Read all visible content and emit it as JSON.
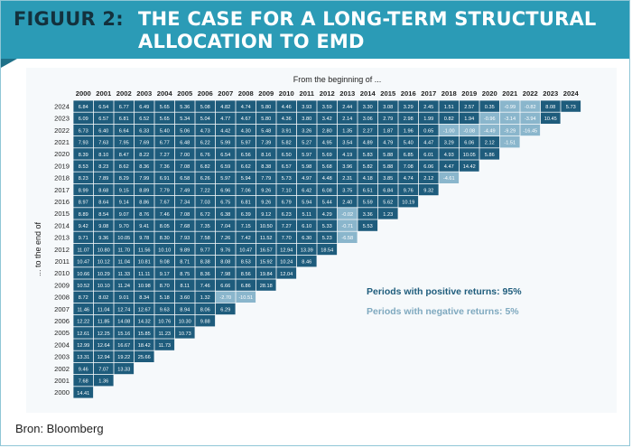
{
  "figure_label": "FIGUUR 2:",
  "title": "THE CASE FOR A LONG-TERM STRUCTURAL ALLOCATION TO EMD",
  "source": "Bron: Bloomberg",
  "colors": {
    "banner": "#2b9bb6",
    "banner_notch": "#1e7088",
    "figure_label": "#13313d",
    "positive_cell": "#1e5c7c",
    "negative_cell": "#8ab6cc",
    "positive_text": "#1e5c7c",
    "negative_text": "#7fa9bf"
  },
  "chart_data": {
    "type": "heatmap",
    "x_label": "From the beginning of ...",
    "y_label": "... to the end of",
    "x_years": [
      "2000",
      "2001",
      "2002",
      "2003",
      "2004",
      "2005",
      "2006",
      "2007",
      "2008",
      "2009",
      "2010",
      "2011",
      "2012",
      "2013",
      "2014",
      "2015",
      "2016",
      "2017",
      "2018",
      "2019",
      "2020",
      "2021",
      "2022",
      "2023",
      "2024"
    ],
    "y_years": [
      "2024",
      "2023",
      "2022",
      "2021",
      "2020",
      "2019",
      "2018",
      "2017",
      "2016",
      "2015",
      "2014",
      "2013",
      "2012",
      "2011",
      "2010",
      "2009",
      "2008",
      "2007",
      "2006",
      "2005",
      "2004",
      "2003",
      "2002",
      "2001",
      "2000"
    ],
    "rows": [
      [
        "6.84",
        "6.54",
        "6.77",
        "6.49",
        "5.65",
        "5.36",
        "5.08",
        "4.82",
        "4.74",
        "5.80",
        "4.46",
        "3.93",
        "3.59",
        "2.44",
        "3.30",
        "3.08",
        "3.29",
        "2.45",
        "1.51",
        "2.57",
        "0.35",
        "-0.99",
        "-0.82",
        "8.08",
        "5.73"
      ],
      [
        "6.09",
        "6.57",
        "6.81",
        "6.52",
        "5.65",
        "5.34",
        "5.04",
        "4.77",
        "4.67",
        "5.80",
        "4.36",
        "3.80",
        "3.42",
        "2.14",
        "3.06",
        "2.79",
        "2.98",
        "1.99",
        "0.82",
        "1.94",
        "-0.96",
        "-3.14",
        "-3.94",
        "10.45"
      ],
      [
        "6.73",
        "6.40",
        "6.64",
        "6.33",
        "5.40",
        "5.06",
        "4.73",
        "4.42",
        "4.30",
        "5.48",
        "3.91",
        "3.26",
        "2.80",
        "1.35",
        "2.27",
        "1.87",
        "1.96",
        "0.65",
        "-1.00",
        "-0.08",
        "-4.49",
        "-9.29",
        "-16.45"
      ],
      [
        "7.93",
        "7.63",
        "7.95",
        "7.69",
        "6.77",
        "6.48",
        "6.22",
        "5.99",
        "5.97",
        "7.39",
        "5.82",
        "5.27",
        "4.95",
        "3.54",
        "4.89",
        "4.79",
        "5.40",
        "4.47",
        "3.29",
        "6.06",
        "2.12",
        "-1.51"
      ],
      [
        "8.39",
        "8.10",
        "8.47",
        "8.22",
        "7.27",
        "7.00",
        "6.76",
        "6.54",
        "6.56",
        "8.16",
        "6.50",
        "5.97",
        "5.69",
        "4.19",
        "5.83",
        "5.88",
        "6.85",
        "6.01",
        "4.93",
        "10.05",
        "5.86"
      ],
      [
        "8.53",
        "8.23",
        "8.62",
        "8.36",
        "7.36",
        "7.08",
        "6.82",
        "6.59",
        "6.62",
        "8.38",
        "6.57",
        "5.98",
        "5.68",
        "3.96",
        "5.82",
        "5.88",
        "7.08",
        "6.06",
        "4.47",
        "14.42"
      ],
      [
        "8.23",
        "7.89",
        "8.29",
        "7.99",
        "6.91",
        "6.58",
        "6.26",
        "5.97",
        "5.94",
        "7.79",
        "5.73",
        "4.97",
        "4.48",
        "2.31",
        "4.18",
        "3.85",
        "4.74",
        "2.12",
        "-4.61"
      ],
      [
        "8.99",
        "8.68",
        "9.15",
        "8.89",
        "7.79",
        "7.49",
        "7.22",
        "6.96",
        "7.06",
        "9.26",
        "7.10",
        "6.42",
        "6.08",
        "3.75",
        "6.51",
        "6.84",
        "9.76",
        "9.32"
      ],
      [
        "8.97",
        "8.64",
        "9.14",
        "8.86",
        "7.67",
        "7.34",
        "7.03",
        "6.75",
        "6.81",
        "9.26",
        "6.79",
        "5.94",
        "5.44",
        "2.40",
        "5.59",
        "5.62",
        "10.19"
      ],
      [
        "8.89",
        "8.54",
        "9.07",
        "8.76",
        "7.46",
        "7.08",
        "6.72",
        "6.38",
        "6.39",
        "9.12",
        "6.23",
        "5.11",
        "4.29",
        "-0.02",
        "3.36",
        "1.23"
      ],
      [
        "9.42",
        "9.08",
        "9.70",
        "9.41",
        "8.05",
        "7.68",
        "7.35",
        "7.04",
        "7.15",
        "10.50",
        "7.27",
        "6.10",
        "5.33",
        "-0.71",
        "5.53"
      ],
      [
        "9.71",
        "9.36",
        "10.05",
        "9.78",
        "8.30",
        "7.93",
        "7.58",
        "7.26",
        "7.42",
        "11.52",
        "7.70",
        "6.30",
        "5.23",
        "-6.58"
      ],
      [
        "11.07",
        "10.80",
        "11.70",
        "11.56",
        "10.10",
        "9.89",
        "9.77",
        "9.76",
        "10.47",
        "16.57",
        "12.94",
        "13.39",
        "18.54"
      ],
      [
        "10.47",
        "10.12",
        "11.04",
        "10.81",
        "9.08",
        "8.71",
        "8.38",
        "8.08",
        "8.53",
        "15.92",
        "10.24",
        "8.46"
      ],
      [
        "10.66",
        "10.29",
        "11.33",
        "11.11",
        "9.17",
        "8.75",
        "8.36",
        "7.98",
        "8.56",
        "19.84",
        "12.04"
      ],
      [
        "10.52",
        "10.10",
        "11.24",
        "10.98",
        "8.70",
        "8.11",
        "7.46",
        "6.66",
        "6.86",
        "28.18"
      ],
      [
        "8.72",
        "8.02",
        "9.01",
        "8.34",
        "5.18",
        "3.60",
        "1.32",
        "-2.70",
        "-10.51"
      ],
      [
        "11.46",
        "11.04",
        "12.74",
        "12.67",
        "9.63",
        "8.94",
        "8.06",
        "6.29"
      ],
      [
        "12.22",
        "11.85",
        "14.08",
        "14.32",
        "10.76",
        "10.30",
        "9.88"
      ],
      [
        "12.61",
        "12.25",
        "15.16",
        "15.85",
        "11.23",
        "10.73"
      ],
      [
        "12.99",
        "12.64",
        "16.67",
        "18.42",
        "11.73"
      ],
      [
        "13.31",
        "12.94",
        "19.22",
        "25.66"
      ],
      [
        "9.46",
        "7.07",
        "13.33"
      ],
      [
        "7.68",
        "1.36"
      ],
      [
        "14.41"
      ]
    ],
    "annotations": [
      {
        "text": "Periods with positive returns: 95%",
        "kind": "positive"
      },
      {
        "text": "Periods with negative returns: 5%",
        "kind": "negative"
      }
    ]
  }
}
